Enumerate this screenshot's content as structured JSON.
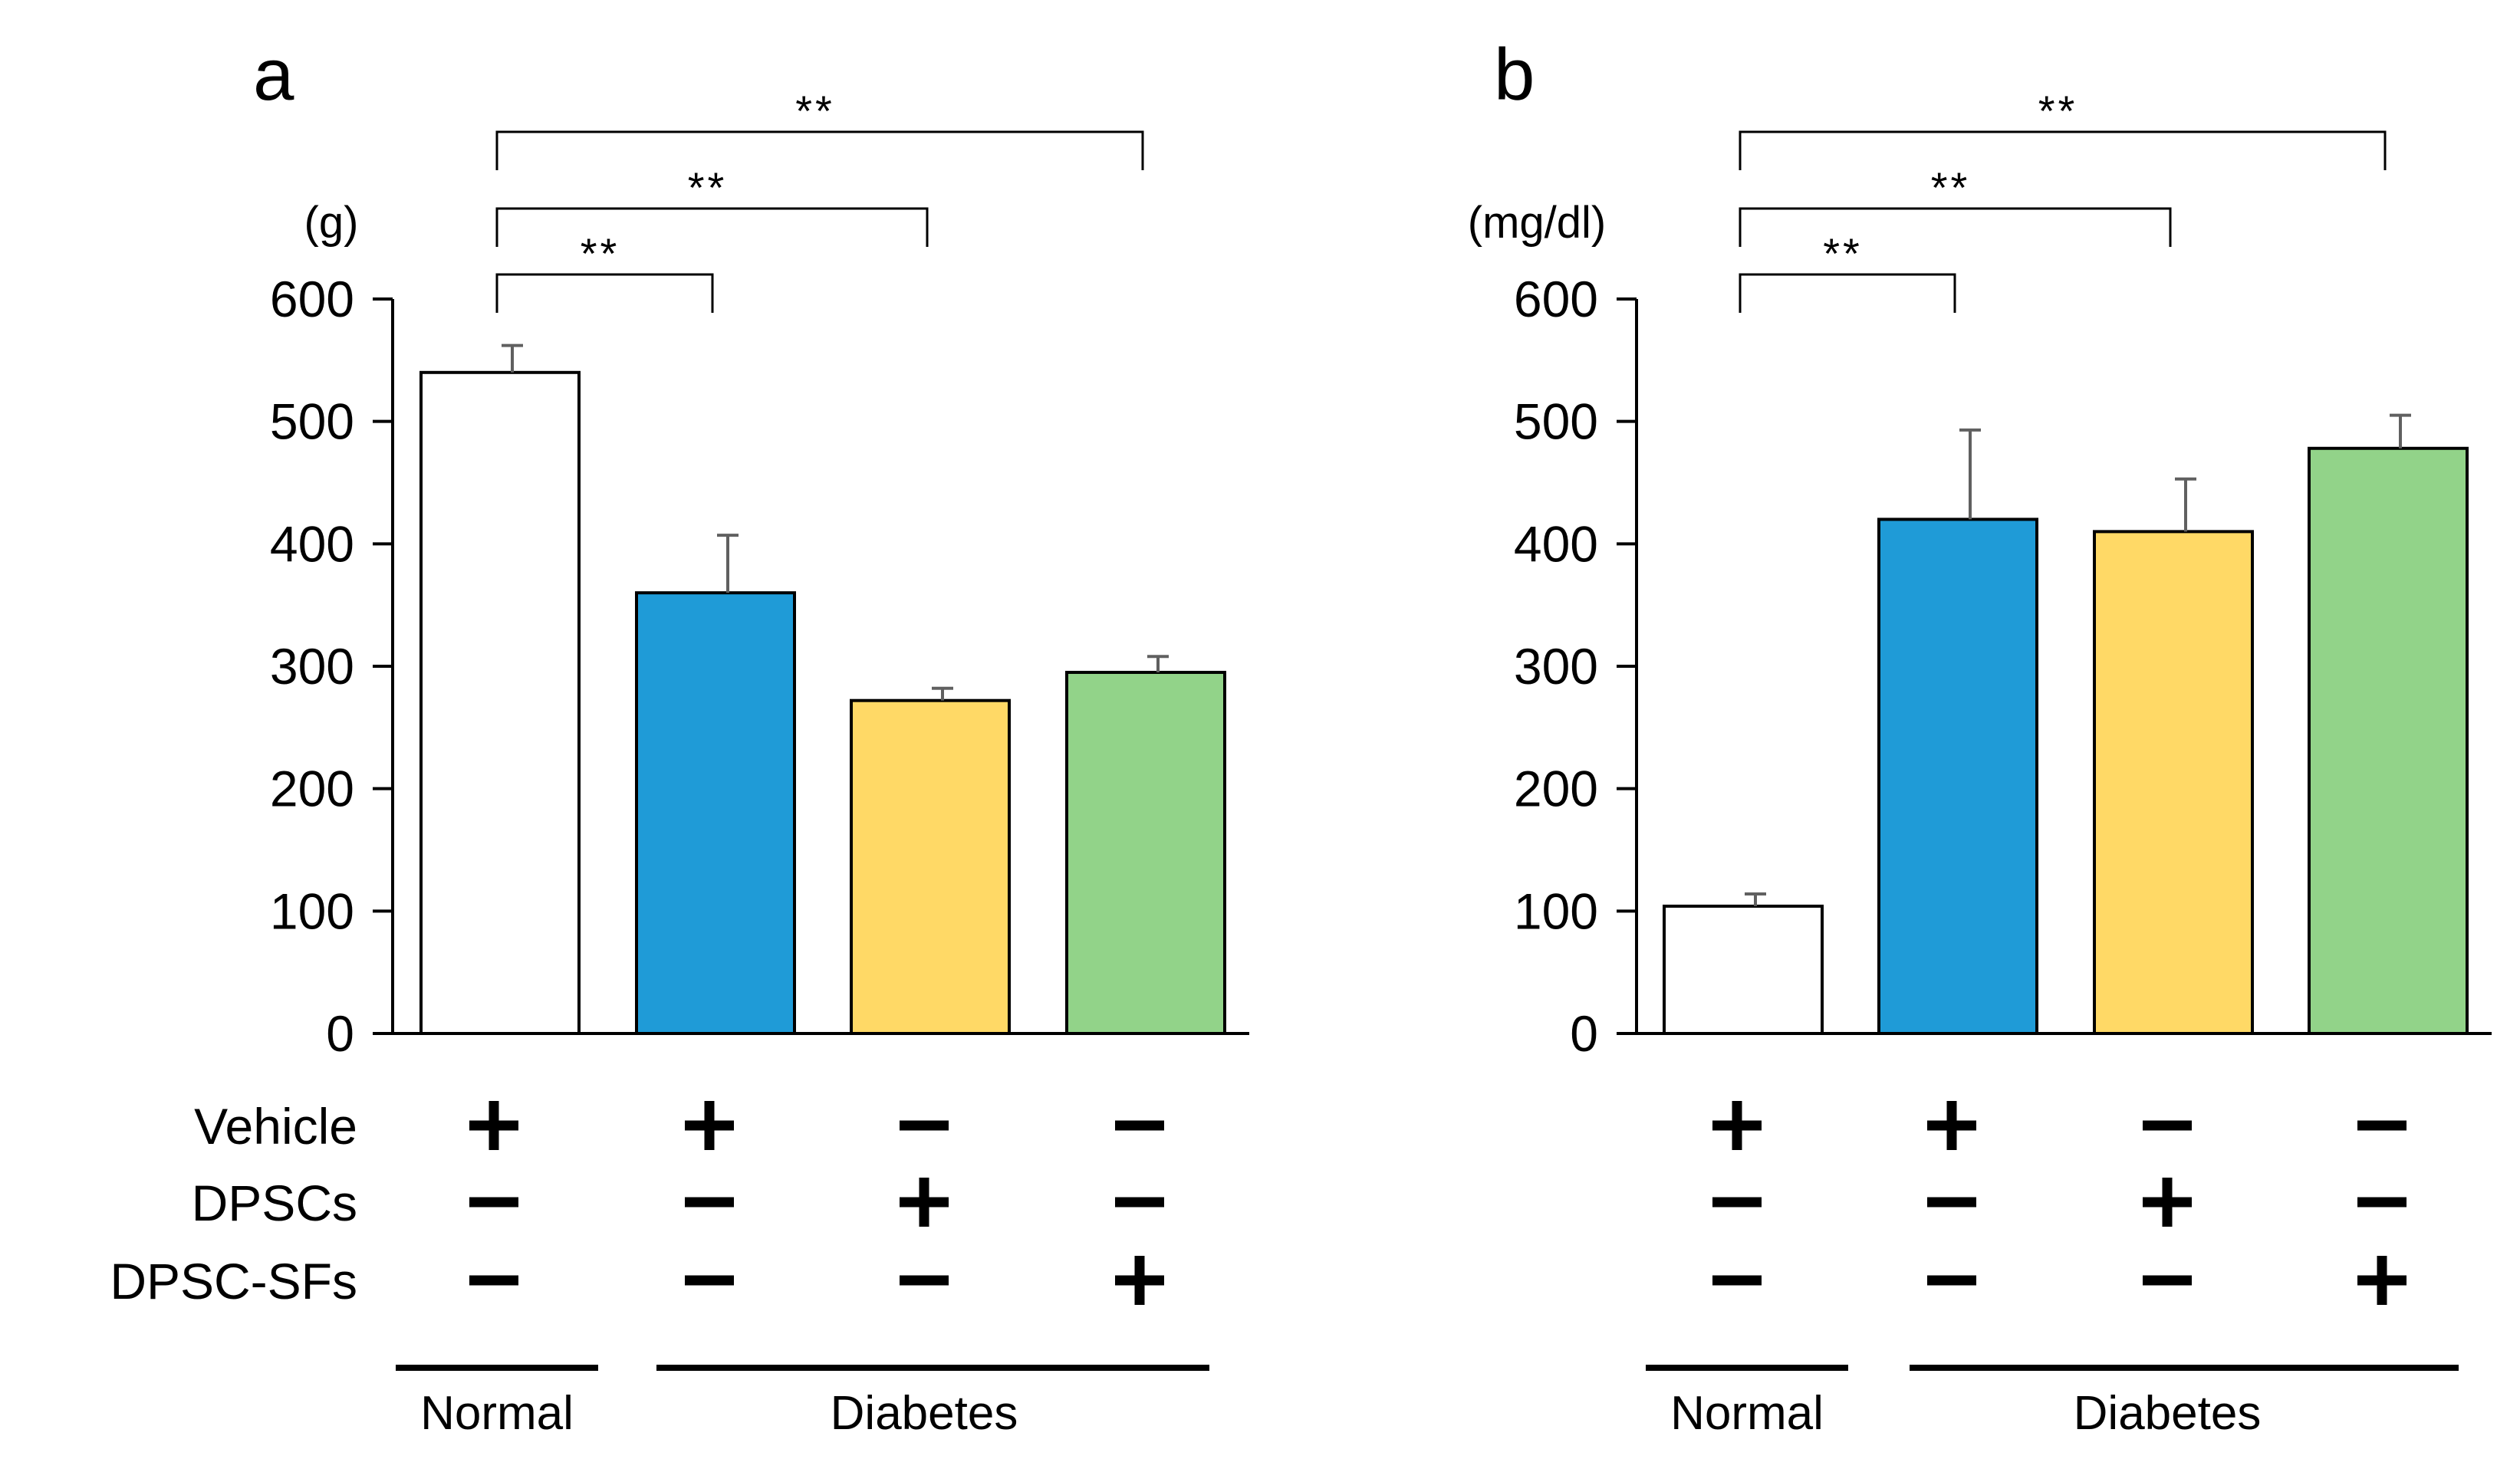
{
  "colors": {
    "normal": "#ffffff",
    "vehicle": "#1f9bd7",
    "dpscs": "#ffd966",
    "dpsc_sfs": "#92d389",
    "error_bar": "#606060",
    "stroke": "#000000"
  },
  "treatments": {
    "row_labels": [
      "Vehicle",
      "DPSCs",
      "DPSC-SFs"
    ],
    "matrix": [
      [
        "+",
        "+",
        "−",
        "−"
      ],
      [
        "−",
        "−",
        "+",
        "−"
      ],
      [
        "−",
        "−",
        "−",
        "+"
      ]
    ],
    "group_labels": [
      "Normal",
      "Diabetes"
    ]
  },
  "chart_data": [
    {
      "type": "bar",
      "panel": "a",
      "title": "",
      "unit_label": "(g)",
      "xlabel": "",
      "ylabel": "(g)",
      "ylim": [
        0,
        600
      ],
      "yticks": [
        0,
        100,
        200,
        300,
        400,
        500,
        600
      ],
      "categories": [
        "Normal Vehicle",
        "Diabetes Vehicle",
        "Diabetes DPSCs",
        "Diabetes DPSC-SFs"
      ],
      "values": [
        540,
        360,
        272,
        295
      ],
      "errors": [
        22,
        47,
        10,
        13
      ],
      "significance": [
        {
          "from": 0,
          "to": 1,
          "label": "**"
        },
        {
          "from": 0,
          "to": 2,
          "label": "**"
        },
        {
          "from": 0,
          "to": 3,
          "label": "**"
        }
      ]
    },
    {
      "type": "bar",
      "panel": "b",
      "title": "",
      "unit_label": "(mg/dl)",
      "xlabel": "",
      "ylabel": "(mg/dl)",
      "ylim": [
        0,
        600
      ],
      "yticks": [
        0,
        100,
        200,
        300,
        400,
        500,
        600
      ],
      "categories": [
        "Normal Vehicle",
        "Diabetes Vehicle",
        "Diabetes DPSCs",
        "Diabetes DPSC-SFs"
      ],
      "values": [
        104,
        420,
        410,
        478
      ],
      "errors": [
        10,
        73,
        43,
        27
      ],
      "significance": [
        {
          "from": 0,
          "to": 1,
          "label": "**"
        },
        {
          "from": 0,
          "to": 2,
          "label": "**"
        },
        {
          "from": 0,
          "to": 3,
          "label": "**"
        }
      ]
    }
  ]
}
